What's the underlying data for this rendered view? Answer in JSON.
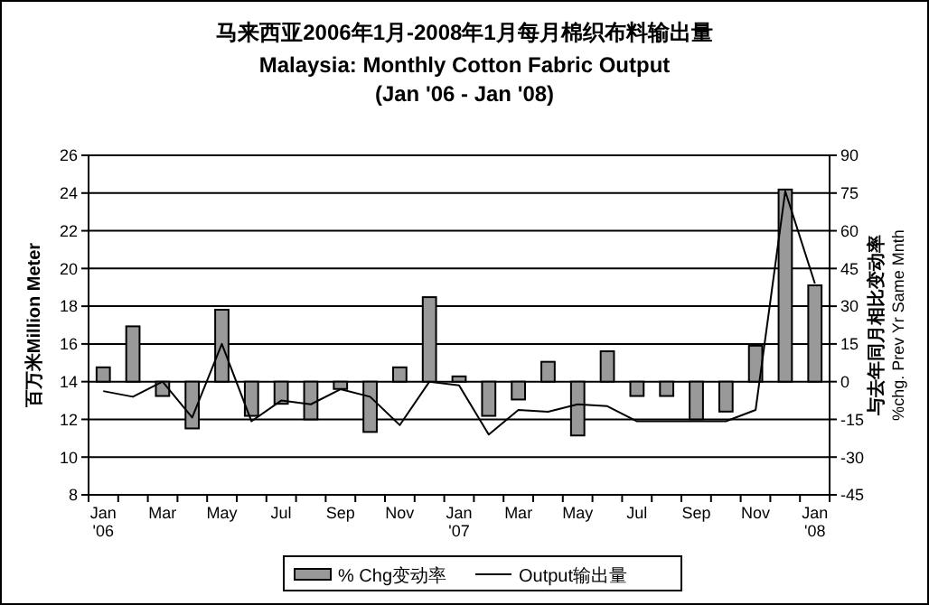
{
  "chart_data": {
    "type": "bar",
    "title": "马来西亚2006年1月-2008年1月每月棉织布料输出量",
    "subtitle": "Malaysia: Monthly Cotton Fabric Output\n(Jan '06 - Jan '08)",
    "ylabel": "百万米Million Meter",
    "y2label": "与去年同月相比变动率\n%chg. Prev Yr Same Mnth",
    "categories": [
      "Jan\n'06",
      null,
      "Mar",
      null,
      "May",
      null,
      "Jul",
      null,
      "Sep",
      null,
      "Nov",
      null,
      "Jan\n'07",
      null,
      "Mar",
      null,
      "May",
      null,
      "Jul",
      null,
      "Sep",
      null,
      "Nov",
      null,
      "Jan\n'08"
    ],
    "series": [
      {
        "name": "% Chg变动率",
        "axis": "y2",
        "color": "#999999",
        "values": [
          5.7,
          22,
          -5.7,
          -18.6,
          28.6,
          -13.6,
          -8.8,
          -15,
          -2.9,
          -20,
          5.7,
          33.6,
          2.1,
          -13.6,
          -7.1,
          7.9,
          -21.4,
          12.1,
          -5.7,
          -5.7,
          -15,
          -11.9,
          14.3,
          76.4,
          38.3
        ]
      },
      {
        "name": "Output输出量",
        "type": "line",
        "color": "#000000",
        "values": [
          13.5,
          13.2,
          14.0,
          12.1,
          16.0,
          11.9,
          13.0,
          12.8,
          13.6,
          13.2,
          11.7,
          14.0,
          13.8,
          11.2,
          12.5,
          12.4,
          12.8,
          12.7,
          11.9,
          11.9,
          11.9,
          11.9,
          12.5,
          24.1,
          19.2
        ]
      }
    ],
    "ylim": [
      8,
      26
    ],
    "yticks": [
      8,
      10,
      12,
      14,
      16,
      18,
      20,
      22,
      24,
      26
    ],
    "y2lim": [
      -45,
      90
    ],
    "y2ticks": [
      -45,
      -30,
      -15,
      0,
      15,
      30,
      45,
      60,
      75,
      90
    ],
    "grid": "y",
    "legend": "bottom",
    "marker": "none",
    "line_style": "solid"
  }
}
